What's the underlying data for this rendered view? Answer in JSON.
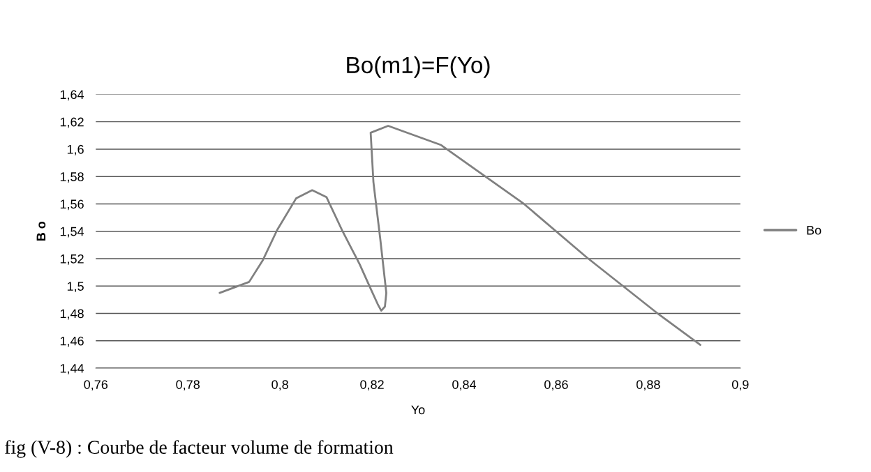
{
  "chart_data": {
    "type": "line",
    "title": "Bo(m1)=F(Yo)",
    "xlabel": "Yo",
    "ylabel": "B o",
    "series": [
      {
        "name": "Bo",
        "color": "#808080",
        "x": [
          0.7869,
          0.7933,
          0.7963,
          0.7994,
          0.8035,
          0.807,
          0.8101,
          0.8136,
          0.8173,
          0.8197,
          0.8212,
          0.822,
          0.8228,
          0.8231,
          0.8218,
          0.8203,
          0.8197,
          0.8235,
          0.835,
          0.853,
          0.8666,
          0.8824,
          0.8913
        ],
        "values": [
          1.495,
          1.503,
          1.519,
          1.541,
          1.564,
          1.57,
          1.565,
          1.54,
          1.516,
          1.498,
          1.487,
          1.482,
          1.485,
          1.495,
          1.534,
          1.576,
          1.612,
          1.617,
          1.603,
          1.56,
          1.521,
          1.479,
          1.457
        ]
      }
    ],
    "xlim": [
      0.76,
      0.9
    ],
    "xticks": [
      {
        "value": 0.76,
        "label": "0,76"
      },
      {
        "value": 0.78,
        "label": "0,78"
      },
      {
        "value": 0.8,
        "label": "0,8"
      },
      {
        "value": 0.82,
        "label": "0,82"
      },
      {
        "value": 0.84,
        "label": "0,84"
      },
      {
        "value": 0.86,
        "label": "0,86"
      },
      {
        "value": 0.88,
        "label": "0,88"
      },
      {
        "value": 0.9,
        "label": "0,9"
      }
    ],
    "ylim": [
      1.44,
      1.64
    ],
    "yticks": [
      {
        "value": 1.44,
        "label": "1,44"
      },
      {
        "value": 1.46,
        "label": "1,46"
      },
      {
        "value": 1.48,
        "label": "1,48"
      },
      {
        "value": 1.5,
        "label": "1,5"
      },
      {
        "value": 1.52,
        "label": "1,52"
      },
      {
        "value": 1.54,
        "label": "1,54"
      },
      {
        "value": 1.56,
        "label": "1,56"
      },
      {
        "value": 1.58,
        "label": "1,58"
      },
      {
        "value": 1.6,
        "label": "1,6"
      },
      {
        "value": 1.62,
        "label": "1,62"
      },
      {
        "value": 1.64,
        "label": "1,64"
      }
    ],
    "grid": "y",
    "legend": "right",
    "marker": "none",
    "line_style": "solid",
    "annotations": [
      "fig (V-8) : Courbe de facteur volume de formation"
    ]
  }
}
